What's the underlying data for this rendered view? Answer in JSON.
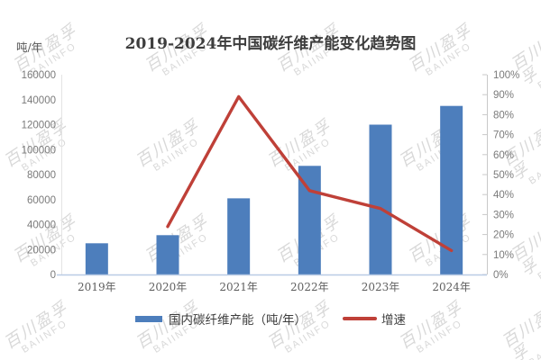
{
  "watermark": {
    "line1": "百川盈孚",
    "line2": "BAIINFO"
  },
  "chart_data": {
    "type": "bar",
    "combo": "bar+line",
    "title": "2019-2024年中国碳纤维产能变化趋势图",
    "unit_label": "吨/年",
    "categories": [
      "2019年",
      "2020年",
      "2021年",
      "2022年",
      "2023年",
      "2024年"
    ],
    "series": [
      {
        "name": "国内碳纤维产能（吨/年）",
        "type": "bar",
        "axis": "left",
        "values": [
          25000,
          31500,
          61000,
          87000,
          120000,
          135000
        ],
        "color": "#4d7ebc"
      },
      {
        "name": "增速",
        "type": "line",
        "axis": "right",
        "values": [
          null,
          24,
          89,
          42,
          33,
          12
        ],
        "color": "#bf4038"
      }
    ],
    "left_axis": {
      "min": 0,
      "max": 160000,
      "step": 20000,
      "tick_labels": [
        "160000",
        "140000",
        "120000",
        "100000",
        "80000",
        "60000",
        "40000",
        "20000",
        "0"
      ]
    },
    "right_axis": {
      "min": 0,
      "max": 100,
      "step": 10,
      "tick_labels": [
        "100%",
        "90%",
        "80%",
        "70%",
        "60%",
        "50%",
        "40%",
        "30%",
        "20%",
        "10%",
        "0%"
      ]
    },
    "grid": "off",
    "legend_position": "bottom",
    "colors": {
      "axis": "#c9c9c9",
      "axis_light": "#e4e4e4",
      "baseline": "#b9cbe5",
      "title_text": "#3d3d3d",
      "tick_text": "#7a7a7a",
      "watermark": "#b3b3b3"
    }
  }
}
